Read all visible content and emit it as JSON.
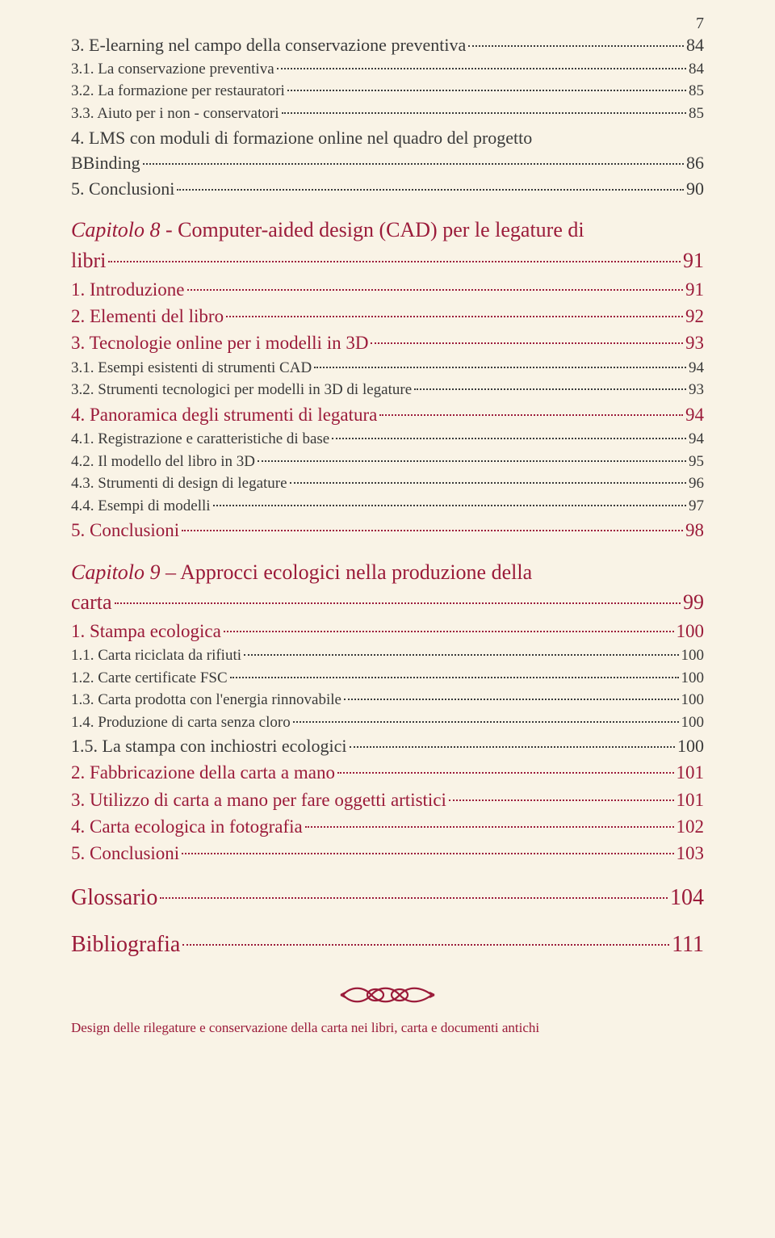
{
  "page_number": "7",
  "colors": {
    "bg": "#f9f3e6",
    "text_body": "#3a3a3a",
    "text_accent": "#9b1b3a"
  },
  "entries": [
    {
      "level": "sub",
      "label": "3. E-learning nel campo della conservazione preventiva",
      "page": "84"
    },
    {
      "level": "subsub",
      "label": "3.1. La conservazione preventiva",
      "page": "84"
    },
    {
      "level": "subsub",
      "label": "3.2. La formazione per restauratori",
      "page": "85"
    },
    {
      "level": "subsub",
      "label": "3.3. Aiuto per i non - conservatori",
      "page": "85"
    },
    {
      "level": "sub",
      "label": "4. LMS con moduli di formazione online nel quadro del progetto BBinding",
      "page": "86"
    },
    {
      "level": "sub",
      "label": "5. Conclusioni",
      "page": "90"
    },
    {
      "level": "chap",
      "prefix": "Capitolo 8",
      "rest": " - Computer-aided design (CAD) per le legature di libri",
      "page": "91"
    },
    {
      "level": "sec",
      "label": "1. Introduzione",
      "page": "91"
    },
    {
      "level": "sec",
      "label": "2. Elementi del libro",
      "page": "92"
    },
    {
      "level": "sec",
      "label": "3. Tecnologie online per i modelli in 3D",
      "page": "93"
    },
    {
      "level": "subsub",
      "label": "3.1. Esempi esistenti di strumenti CAD",
      "page": "94"
    },
    {
      "level": "subsub",
      "label": "3.2. Strumenti tecnologici per modelli in 3D di legature",
      "page": "93"
    },
    {
      "level": "sec",
      "label": "4. Panoramica degli strumenti di legatura",
      "page": "94"
    },
    {
      "level": "subsub",
      "label": "4.1. Registrazione e caratteristiche di base",
      "page": "94"
    },
    {
      "level": "subsub",
      "label": "4.2. Il modello del libro in 3D",
      "page": "95"
    },
    {
      "level": "subsub",
      "label": "4.3. Strumenti di design di legature",
      "page": "96"
    },
    {
      "level": "subsub",
      "label": "4.4. Esempi di modelli",
      "page": "97"
    },
    {
      "level": "sec",
      "label": "5. Conclusioni",
      "page": "98"
    },
    {
      "level": "chap",
      "prefix": "Capitolo 9",
      "rest": " – Approcci ecologici nella produzione della carta",
      "page": "99"
    },
    {
      "level": "sec",
      "label": "1. Stampa ecologica",
      "page": "100"
    },
    {
      "level": "subsub",
      "label": "1.1. Carta riciclata da rifiuti",
      "page": "100"
    },
    {
      "level": "subsub",
      "label": "1.2. Carte certificate FSC",
      "page": "100"
    },
    {
      "level": "subsub",
      "label": "1.3. Carta prodotta con l'energia rinnovabile",
      "page": "100"
    },
    {
      "level": "subsub",
      "label": "1.4. Produzione di carta senza cloro",
      "page": "100"
    },
    {
      "level": "sub",
      "label": "1.5. La stampa con inchiostri ecologici",
      "page": "100"
    },
    {
      "level": "sec",
      "label": "2. Fabbricazione della carta a mano",
      "page": "101"
    },
    {
      "level": "sec",
      "label": "3. Utilizzo di carta a mano per fare oggetti artistici",
      "page": "101"
    },
    {
      "level": "sec",
      "label": "4. Carta ecologica in fotografia",
      "page": "102"
    },
    {
      "level": "sec",
      "label": "5. Conclusioni",
      "page": "103"
    },
    {
      "level": "head",
      "label": "Glossario",
      "page": "104"
    },
    {
      "level": "head",
      "label": "Bibliografia",
      "page": "111"
    }
  ],
  "footer": "Design delle rilegature e conservazione della carta nei libri, carta e documenti antichi"
}
